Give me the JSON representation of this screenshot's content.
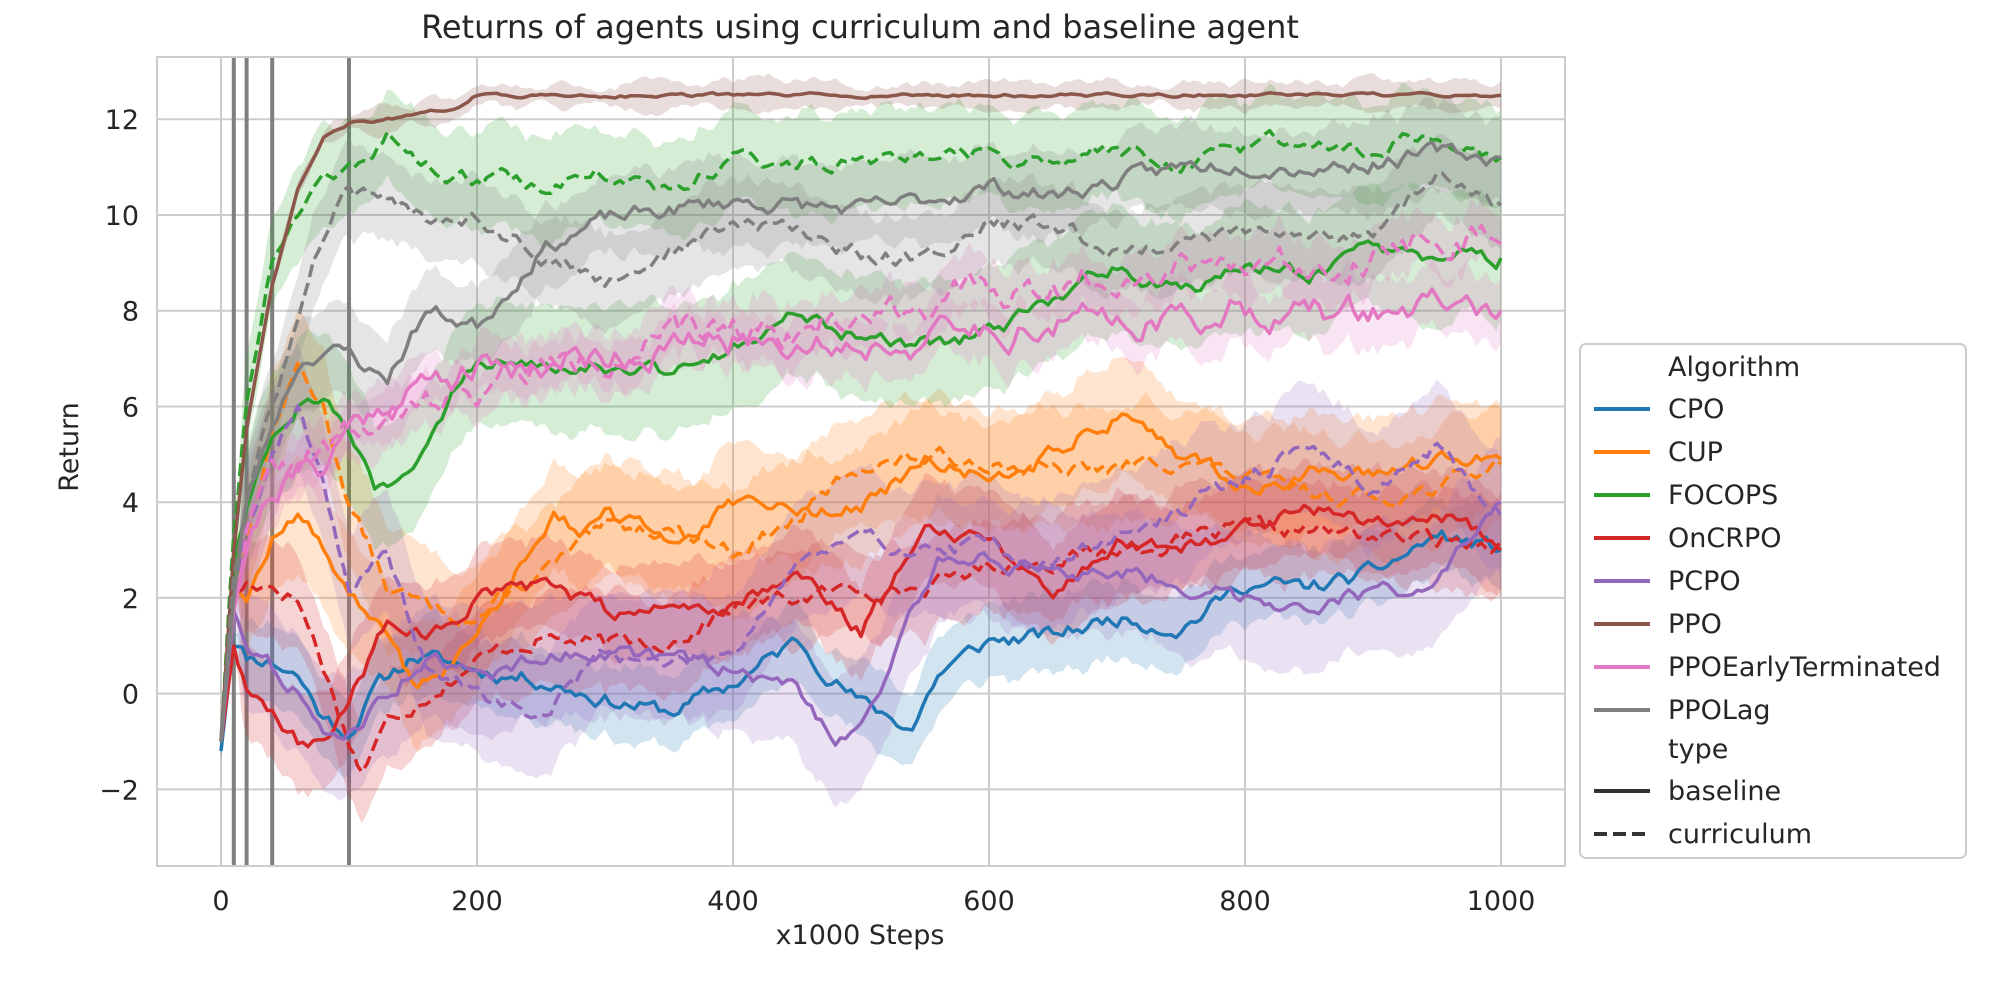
{
  "chart_data": {
    "type": "line",
    "title": "Returns of agents using curriculum and baseline agent",
    "xlabel": "x1000 Steps",
    "ylabel": "Return",
    "xlim": [
      -50,
      1050
    ],
    "ylim": [
      -3.6,
      13.3
    ],
    "xticks": [
      0,
      200,
      400,
      600,
      800,
      1000
    ],
    "xtick_labels": [
      "0",
      "200",
      "400",
      "600",
      "800",
      "1000"
    ],
    "yticks": [
      -2,
      0,
      2,
      4,
      6,
      8,
      10,
      12
    ],
    "ytick_labels": [
      "−2",
      "0",
      "2",
      "4",
      "6",
      "8",
      "10",
      "12"
    ],
    "grid": true,
    "vertical_markers": [
      10,
      20,
      40,
      100
    ],
    "legend": {
      "placement": "right",
      "algorithm_title": "Algorithm",
      "type_title": "type",
      "type_entries": [
        {
          "label": "baseline",
          "style": "solid"
        },
        {
          "label": "curriculum",
          "style": "dashed"
        }
      ]
    },
    "series": [
      {
        "name": "CPO",
        "color": "#1f77b4",
        "baseline": {
          "x": [
            0,
            10,
            20,
            40,
            60,
            80,
            100,
            120,
            150,
            200,
            250,
            300,
            350,
            400,
            450,
            500,
            540,
            560,
            600,
            650,
            700,
            750,
            800,
            850,
            900,
            950,
            1000
          ],
          "y": [
            -1.2,
            1.2,
            0.8,
            0.7,
            0.4,
            -0.5,
            -0.8,
            0.1,
            0.8,
            0.5,
            0.3,
            -0.1,
            -0.4,
            0.2,
            1.1,
            -0.2,
            -0.7,
            0.4,
            1.1,
            1.2,
            1.6,
            1.4,
            2.3,
            2.2,
            2.5,
            3.3,
            3.0
          ],
          "band": 0.8
        },
        "curriculum": null
      },
      {
        "name": "CUP",
        "color": "#ff7f0e",
        "baseline": {
          "x": [
            0,
            10,
            20,
            40,
            60,
            80,
            100,
            120,
            150,
            180,
            200,
            230,
            260,
            280,
            300,
            350,
            400,
            450,
            500,
            550,
            600,
            650,
            700,
            720,
            750,
            800,
            850,
            900,
            950,
            1000
          ],
          "y": [
            -1.0,
            2.5,
            2.0,
            3.2,
            3.8,
            3.0,
            2.2,
            1.5,
            0.2,
            0.6,
            1.2,
            2.5,
            3.9,
            3.4,
            3.7,
            3.2,
            3.9,
            3.8,
            3.9,
            4.8,
            4.5,
            5.1,
            5.8,
            5.7,
            5.0,
            4.3,
            4.6,
            4.5,
            4.9,
            4.9
          ],
          "band": 1.2
        },
        "curriculum": {
          "x": [
            0,
            10,
            20,
            40,
            60,
            80,
            100,
            130,
            160,
            200,
            250,
            300,
            350,
            400,
            450,
            500,
            550,
            600,
            650,
            700,
            750,
            800,
            850,
            900,
            950,
            1000
          ],
          "y": [
            -1.0,
            2.5,
            3.2,
            5.5,
            6.8,
            6.0,
            4.0,
            2.2,
            1.8,
            1.6,
            2.5,
            3.4,
            3.5,
            3.0,
            3.6,
            4.8,
            4.9,
            4.9,
            4.6,
            4.7,
            4.9,
            4.5,
            4.2,
            4.1,
            4.3,
            4.8
          ],
          "band": 1.2
        }
      },
      {
        "name": "FOCOPS",
        "color": "#2ca02c",
        "baseline": {
          "x": [
            0,
            10,
            20,
            40,
            60,
            80,
            100,
            120,
            130,
            150,
            180,
            200,
            250,
            300,
            350,
            400,
            450,
            500,
            550,
            600,
            650,
            700,
            750,
            800,
            850,
            900,
            950,
            1000
          ],
          "y": [
            -1.0,
            2.8,
            4.0,
            5.5,
            6.1,
            6.3,
            5.5,
            4.3,
            4.2,
            4.6,
            6.2,
            6.9,
            7.0,
            6.9,
            6.7,
            7.3,
            7.9,
            7.4,
            7.3,
            7.5,
            8.2,
            9.0,
            8.4,
            8.9,
            8.8,
            9.2,
            9.0,
            9.1
          ],
          "band": 1.3
        },
        "curriculum": {
          "x": [
            0,
            10,
            20,
            40,
            60,
            80,
            100,
            130,
            160,
            200,
            250,
            300,
            350,
            400,
            450,
            500,
            550,
            600,
            650,
            700,
            750,
            800,
            850,
            900,
            950,
            1000
          ],
          "y": [
            -1.0,
            3.5,
            6.0,
            9.2,
            10.2,
            10.6,
            10.8,
            11.6,
            11.0,
            10.8,
            10.6,
            10.9,
            10.4,
            11.2,
            11.1,
            11.0,
            11.2,
            11.3,
            11.0,
            11.4,
            11.1,
            11.4,
            11.6,
            11.4,
            11.7,
            11.2
          ],
          "band": 1.0
        }
      },
      {
        "name": "OnCRPO",
        "color": "#d62728",
        "baseline": {
          "x": [
            0,
            10,
            20,
            40,
            60,
            80,
            100,
            130,
            160,
            200,
            250,
            300,
            350,
            400,
            450,
            500,
            550,
            600,
            650,
            700,
            750,
            800,
            850,
            900,
            950,
            1000
          ],
          "y": [
            -1.0,
            1.0,
            0.2,
            -0.3,
            -1.0,
            -1.0,
            -0.2,
            1.6,
            1.1,
            2.0,
            2.2,
            1.7,
            1.8,
            1.9,
            2.6,
            1.3,
            3.5,
            3.3,
            2.1,
            3.2,
            3.0,
            3.5,
            4.0,
            3.6,
            3.9,
            3.0
          ],
          "band": 1.0
        },
        "curriculum": {
          "x": [
            0,
            10,
            20,
            40,
            60,
            80,
            100,
            110,
            130,
            160,
            200,
            250,
            300,
            350,
            400,
            450,
            500,
            550,
            600,
            650,
            700,
            750,
            800,
            850,
            900,
            950,
            1000
          ],
          "y": [
            -1.0,
            2.0,
            2.3,
            2.3,
            2.0,
            0.6,
            -1.0,
            -1.6,
            -0.6,
            0.0,
            0.7,
            1.2,
            1.0,
            1.1,
            1.8,
            2.0,
            2.2,
            2.2,
            2.7,
            2.8,
            3.0,
            3.2,
            3.4,
            3.4,
            3.3,
            3.2,
            3.2
          ],
          "band": 1.0
        }
      },
      {
        "name": "PCPO",
        "color": "#9467bd",
        "baseline": {
          "x": [
            0,
            10,
            20,
            40,
            60,
            80,
            100,
            130,
            160,
            200,
            250,
            300,
            350,
            400,
            450,
            480,
            500,
            530,
            560,
            600,
            650,
            700,
            750,
            800,
            850,
            900,
            950,
            1000
          ],
          "y": [
            -1.0,
            1.8,
            1.2,
            0.6,
            0.1,
            -1.0,
            -0.8,
            0.0,
            0.8,
            0.3,
            0.8,
            0.9,
            0.7,
            0.5,
            0.1,
            -0.9,
            -0.6,
            1.0,
            2.8,
            2.9,
            2.4,
            2.6,
            2.3,
            2.0,
            1.9,
            2.1,
            2.3,
            4.0
          ],
          "band": 1.3
        },
        "curriculum": {
          "x": [
            0,
            10,
            20,
            40,
            60,
            80,
            100,
            130,
            160,
            200,
            250,
            300,
            350,
            400,
            450,
            500,
            550,
            600,
            650,
            700,
            750,
            800,
            850,
            900,
            950,
            1000
          ],
          "y": [
            -1.0,
            1.8,
            3.5,
            5.0,
            6.0,
            4.5,
            2.2,
            2.8,
            0.6,
            0.0,
            -0.5,
            0.9,
            0.6,
            0.9,
            2.8,
            3.2,
            3.0,
            3.1,
            2.7,
            3.3,
            3.8,
            4.5,
            5.2,
            4.3,
            5.1,
            3.7
          ],
          "band": 1.3
        }
      },
      {
        "name": "PPO",
        "color": "#8c564b",
        "baseline": {
          "x": [
            0,
            10,
            20,
            40,
            60,
            80,
            100,
            130,
            160,
            190,
            200,
            250,
            300,
            400,
            500,
            600,
            700,
            800,
            900,
            1000
          ],
          "y": [
            -1.0,
            3.0,
            5.5,
            8.5,
            10.5,
            11.6,
            11.9,
            12.0,
            12.1,
            12.3,
            12.5,
            12.5,
            12.5,
            12.5,
            12.5,
            12.5,
            12.5,
            12.5,
            12.5,
            12.5
          ],
          "band": 0.25
        },
        "curriculum": null
      },
      {
        "name": "PPOEarlyTerminated",
        "color": "#e377c2",
        "baseline": {
          "x": [
            0,
            10,
            20,
            40,
            60,
            80,
            100,
            130,
            160,
            200,
            250,
            300,
            350,
            400,
            450,
            500,
            550,
            600,
            650,
            700,
            750,
            800,
            850,
            900,
            950,
            1000
          ],
          "y": [
            -1.0,
            2.0,
            3.2,
            4.3,
            4.6,
            4.8,
            5.6,
            6.1,
            6.5,
            6.8,
            6.9,
            7.1,
            7.2,
            7.4,
            7.4,
            7.3,
            7.4,
            7.6,
            7.7,
            7.9,
            7.8,
            8.1,
            7.9,
            8.0,
            8.1,
            8.0
          ],
          "band": 0.6
        },
        "curriculum": {
          "x": [
            0,
            10,
            20,
            40,
            60,
            80,
            100,
            130,
            160,
            200,
            250,
            300,
            350,
            400,
            450,
            500,
            550,
            600,
            650,
            700,
            750,
            800,
            850,
            900,
            950,
            1000
          ],
          "y": [
            -1.0,
            2.0,
            3.5,
            4.5,
            4.8,
            5.0,
            5.4,
            5.6,
            6.0,
            6.4,
            6.8,
            7.1,
            7.4,
            7.7,
            7.6,
            7.9,
            8.2,
            8.4,
            8.5,
            8.8,
            9.0,
            9.1,
            9.0,
            9.2,
            9.6,
            9.4
          ],
          "band": 0.6
        }
      },
      {
        "name": "PPOLag",
        "color": "#7f7f7f",
        "baseline": {
          "x": [
            0,
            10,
            20,
            40,
            60,
            80,
            100,
            120,
            130,
            160,
            200,
            220,
            250,
            300,
            350,
            400,
            450,
            500,
            550,
            600,
            650,
            700,
            750,
            800,
            850,
            900,
            950,
            1000
          ],
          "y": [
            -1.0,
            2.0,
            4.0,
            5.6,
            6.9,
            7.2,
            7.1,
            6.7,
            6.6,
            8.0,
            7.7,
            8.3,
            9.3,
            9.9,
            10.1,
            10.3,
            10.2,
            10.1,
            10.3,
            10.6,
            10.4,
            10.7,
            11.0,
            11.1,
            11.0,
            11.1,
            11.3,
            11.2
          ],
          "band": 0.9
        },
        "curriculum": {
          "x": [
            0,
            10,
            20,
            40,
            60,
            80,
            100,
            130,
            160,
            200,
            250,
            300,
            350,
            400,
            450,
            500,
            550,
            600,
            650,
            700,
            750,
            800,
            850,
            900,
            950,
            1000
          ],
          "y": [
            -1.0,
            2.5,
            4.0,
            6.0,
            7.8,
            9.6,
            10.5,
            10.2,
            10.0,
            10.0,
            9.2,
            8.6,
            9.2,
            9.8,
            9.7,
            9.2,
            9.1,
            9.8,
            9.8,
            9.2,
            9.5,
            9.6,
            9.5,
            9.7,
            10.8,
            10.2
          ],
          "band": 0.9
        }
      }
    ]
  }
}
